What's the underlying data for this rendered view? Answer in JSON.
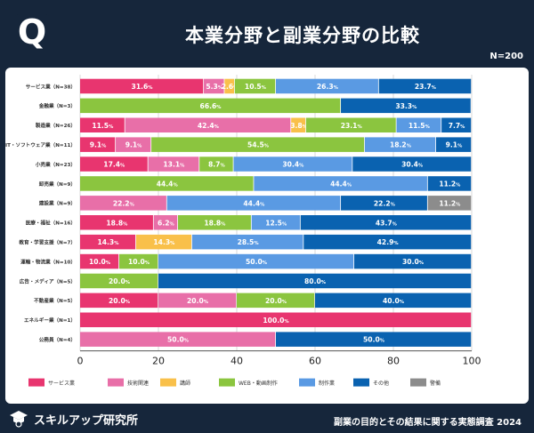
{
  "header": {
    "icon_letter": "Q",
    "title": "本業分野と副業分野の比較",
    "sample": "N=200"
  },
  "footer": {
    "brand": "スキルアップ研究所",
    "survey": "副業の目的とその結果に関する実態調査 2024"
  },
  "colors": [
    "#e8356f",
    "#e86fa8",
    "#f9c04a",
    "#8bc53f",
    "#5a9ae3",
    "#0a62b0",
    "#8c8c8c"
  ],
  "chart_data": {
    "type": "bar",
    "orientation": "horizontal-stacked-percent",
    "xlim": [
      0,
      100
    ],
    "xticks": [
      "0",
      "20",
      "40",
      "60",
      "80",
      "100"
    ],
    "legend_position": "bottom",
    "series_names": [
      "サービス業",
      "技術関連",
      "講師",
      "WEB・動画制作",
      "制作業",
      "その他",
      "警備"
    ],
    "categories": [
      {
        "label": "サービス業（N=38）",
        "values": [
          31.6,
          5.3,
          2.6,
          10.5,
          26.3,
          23.7,
          0
        ],
        "labels": [
          "31.6",
          "5.3",
          "2.6",
          "10.5",
          "26.3",
          "23.7",
          ""
        ]
      },
      {
        "label": "金融業（N=3）",
        "values": [
          0,
          0,
          0,
          66.6,
          0,
          33.3,
          0
        ],
        "labels": [
          "",
          "",
          "",
          "66.6",
          "",
          "33.3",
          ""
        ]
      },
      {
        "label": "製造業（N=26）",
        "values": [
          11.5,
          42.4,
          3.8,
          23.1,
          11.5,
          7.7,
          0
        ],
        "labels": [
          "11.5",
          "42.4",
          "3.8",
          "23.1",
          "11.5",
          "7.7",
          ""
        ]
      },
      {
        "label": "IT・ソフトウェア業（N=11）",
        "values": [
          9.1,
          9.1,
          0,
          54.5,
          18.2,
          9.1,
          0
        ],
        "labels": [
          "9.1",
          "9.1",
          "",
          "54.5",
          "18.2",
          "9.1",
          ""
        ]
      },
      {
        "label": "小売業（N=23）",
        "values": [
          17.4,
          13.1,
          0,
          8.7,
          30.4,
          30.4,
          0
        ],
        "labels": [
          "17.4",
          "13.1",
          "",
          "8.7",
          "30.4",
          "30.4",
          ""
        ]
      },
      {
        "label": "卸売業（N=9）",
        "values": [
          0,
          0,
          0,
          44.4,
          44.4,
          11.2,
          0
        ],
        "labels": [
          "",
          "",
          "",
          "44.4",
          "44.4",
          "11.2",
          ""
        ]
      },
      {
        "label": "建設業（N=9）",
        "values": [
          0,
          22.2,
          0,
          0,
          44.4,
          22.2,
          11.2
        ],
        "labels": [
          "",
          "22.2",
          "",
          "",
          "44.4",
          "22.2",
          "11.2"
        ]
      },
      {
        "label": "医療・福祉（N=16）",
        "values": [
          18.8,
          6.2,
          0,
          18.8,
          12.5,
          43.7,
          0
        ],
        "labels": [
          "18.8",
          "6.2",
          "",
          "18.8",
          "12.5",
          "43.7",
          ""
        ]
      },
      {
        "label": "教育・学習支援（N=7）",
        "values": [
          14.3,
          0,
          14.3,
          0,
          28.5,
          42.9,
          0
        ],
        "labels": [
          "14.3",
          "",
          "14.3",
          "",
          "28.5",
          "42.9",
          ""
        ]
      },
      {
        "label": "運輸・物流業（N=10）",
        "values": [
          10.0,
          0,
          0,
          10.0,
          50.0,
          30.0,
          0
        ],
        "labels": [
          "10.0",
          "",
          "",
          "10.0",
          "50.0",
          "30.0",
          ""
        ]
      },
      {
        "label": "広告・メディア（N=5）",
        "values": [
          0,
          0,
          0,
          20.0,
          0,
          80.0,
          0
        ],
        "labels": [
          "",
          "",
          "",
          "20.0",
          "",
          "80.0",
          ""
        ]
      },
      {
        "label": "不動産業（N=5）",
        "values": [
          20.0,
          20.0,
          0,
          20.0,
          0,
          40.0,
          0
        ],
        "labels": [
          "20.0",
          "20.0",
          "",
          "20.0",
          "",
          "40.0",
          ""
        ]
      },
      {
        "label": "エネルギー業（N=1）",
        "values": [
          100.0,
          0,
          0,
          0,
          0,
          0,
          0
        ],
        "labels": [
          "100.0",
          "",
          "",
          "",
          "",
          "",
          ""
        ]
      },
      {
        "label": "公務員（N=4）",
        "values": [
          0,
          50.0,
          0,
          0,
          0,
          50.0,
          0
        ],
        "labels": [
          "",
          "50.0",
          "",
          "",
          "",
          "50.0",
          ""
        ]
      }
    ]
  }
}
